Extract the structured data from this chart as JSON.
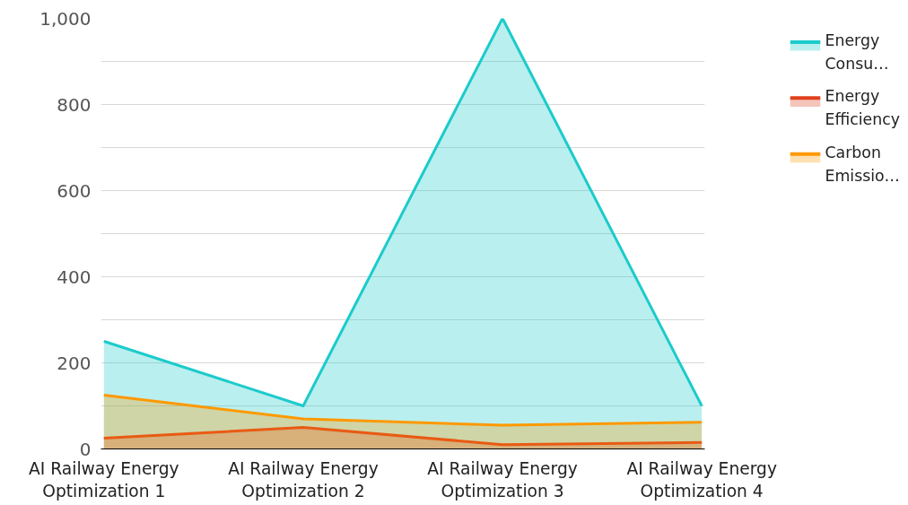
{
  "chart_data": {
    "type": "area",
    "categories": [
      "AI Railway Energy Optimization 1",
      "AI Railway Energy Optimization 2",
      "AI Railway Energy Optimization 3",
      "AI Railway Energy Optimization 4"
    ],
    "series": [
      {
        "name": "Energy Consu…",
        "color": "#1ccbcb",
        "values": [
          250,
          100,
          1000,
          100
        ]
      },
      {
        "name": "Energy Efficiency",
        "color": "#e0401c",
        "values": [
          25,
          50,
          10,
          15
        ]
      },
      {
        "name": "Carbon Emissio…",
        "color": "#ff9900",
        "values": [
          125,
          70,
          55,
          62
        ]
      }
    ],
    "ylim": [
      0,
      1000
    ],
    "yticks": [
      0,
      {
        "value": 100,
        "label": null
      },
      200,
      {
        "value": 300,
        "label": null
      },
      400,
      {
        "value": 500,
        "label": null
      },
      600,
      {
        "value": 700,
        "label": null
      },
      800,
      {
        "value": 900,
        "label": null
      },
      {
        "value": 1000,
        "label": "1,000"
      }
    ],
    "grid": "y",
    "legend": "right"
  }
}
